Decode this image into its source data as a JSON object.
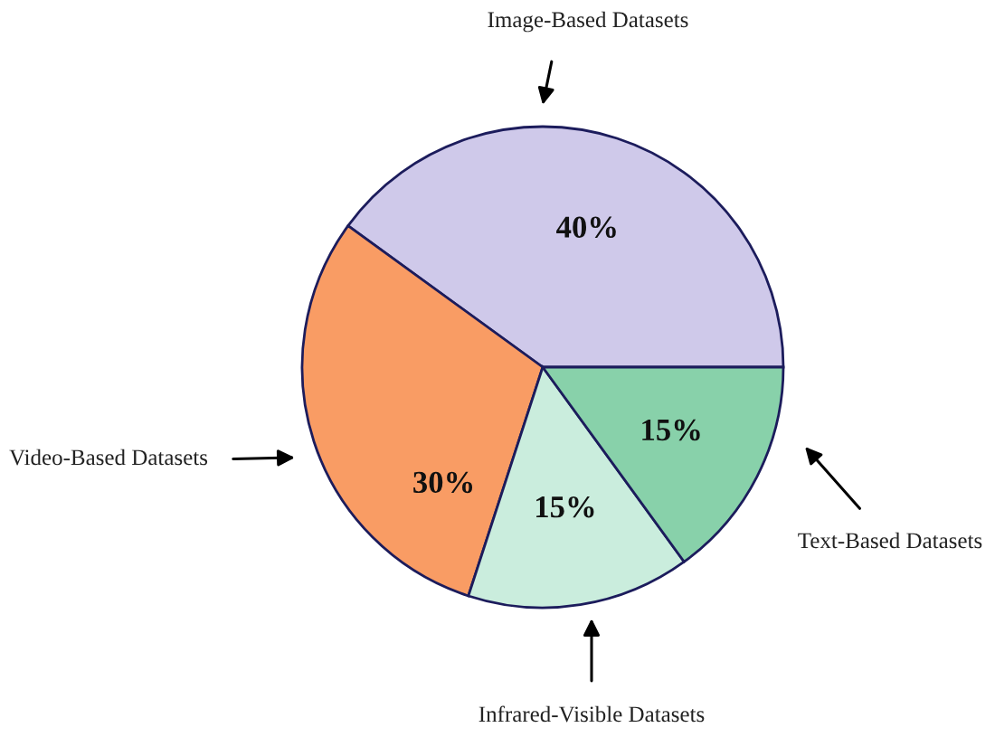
{
  "chart_data": {
    "type": "pie",
    "categories": [
      "Image-Based Datasets",
      "Video-Based Datasets",
      "Infrared-Visible Datasets",
      "Text-Based Datasets"
    ],
    "values": [
      40,
      30,
      15,
      15
    ],
    "colors": [
      "#cfc9ea",
      "#f99c64",
      "#caeddd",
      "#88d1aa"
    ],
    "value_labels": [
      "40%",
      "30%",
      "15%",
      "15%"
    ]
  }
}
